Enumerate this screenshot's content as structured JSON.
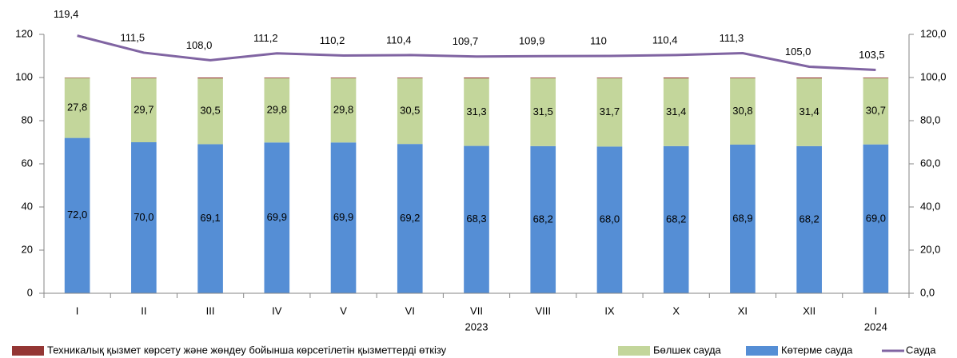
{
  "chart_data": {
    "type": "stacked-bar-line",
    "categories": [
      "I",
      "II",
      "III",
      "IV",
      "V",
      "VI",
      "VII",
      "VIII",
      "IX",
      "X",
      "XI",
      "XII",
      "I"
    ],
    "year_labels": [
      "2023",
      "2024"
    ],
    "ylim": [
      0,
      120
    ],
    "yticks": [
      0,
      20,
      40,
      60,
      80,
      100,
      120
    ],
    "y2lim": [
      0,
      120
    ],
    "y2ticks": [
      {
        "value": 0,
        "label": "0,0"
      },
      {
        "value": 20,
        "label": "20,0"
      },
      {
        "value": 40,
        "label": "40,0"
      },
      {
        "value": 60,
        "label": "60,0"
      },
      {
        "value": 80,
        "label": "80,0"
      },
      {
        "value": 100,
        "label": "100,0"
      },
      {
        "value": 120,
        "label": "120,0"
      }
    ],
    "legend": "bottom",
    "series": [
      {
        "name": "Техникалық қызмет көрсету және жөндеу бойынша көрсетілетін қызметтерді өткізу",
        "kind": "bar",
        "color": "#943634",
        "values": [
          0.2,
          0.3,
          0.4,
          0.3,
          0.3,
          0.3,
          0.4,
          0.3,
          0.3,
          0.4,
          0.3,
          0.4,
          0.3
        ]
      },
      {
        "name": "Бөлшек сауда",
        "kind": "bar",
        "color": "#c3d69b",
        "values": [
          27.8,
          29.7,
          30.5,
          29.8,
          29.8,
          30.5,
          31.3,
          31.5,
          31.7,
          31.4,
          30.8,
          31.4,
          30.7
        ],
        "value_labels": [
          "27,8",
          "29,7",
          "30,5",
          "29,8",
          "29,8",
          "30,5",
          "31,3",
          "31,5",
          "31,7",
          "31,4",
          "30,8",
          "31,4",
          "30,7"
        ]
      },
      {
        "name": "Көтерме сауда",
        "kind": "bar",
        "color": "#558ed5",
        "values": [
          72.0,
          70.0,
          69.1,
          69.9,
          69.9,
          69.2,
          68.3,
          68.2,
          68.0,
          68.2,
          68.9,
          68.2,
          69.0
        ],
        "value_labels": [
          "72,0",
          "70,0",
          "69,1",
          "69,9",
          "69,9",
          "69,2",
          "68,3",
          "68,2",
          "68,0",
          "68,2",
          "68,9",
          "68,2",
          "69,0"
        ]
      },
      {
        "name": "Сауда",
        "kind": "line",
        "axis": "y2",
        "color": "#8064a2",
        "values": [
          119.4,
          111.5,
          108.0,
          111.2,
          110.2,
          110.4,
          109.7,
          109.9,
          110,
          110.4,
          111.3,
          105.0,
          103.5
        ],
        "value_labels": [
          "119,4",
          "111,5",
          "108,0",
          "111,2",
          "110,2",
          "110,4",
          "109,7",
          "109,9",
          "110",
          "110,4",
          "111,3",
          "105,0",
          "103,5"
        ]
      }
    ]
  }
}
